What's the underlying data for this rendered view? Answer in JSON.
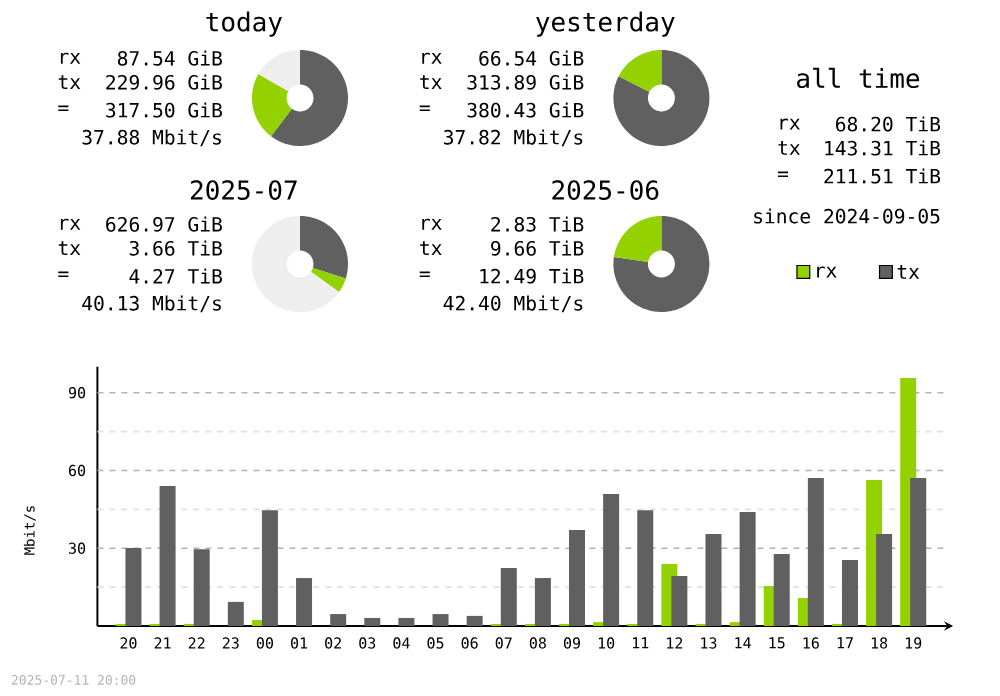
{
  "chart_data": [
    {
      "type": "donut",
      "title": "today",
      "categories": [
        null,
        null,
        null
      ],
      "values": [
        60.3,
        23.0,
        16.7
      ],
      "colors": [
        "#606060",
        "#94d100",
        "#eeeeee"
      ],
      "annotations": [
        "rx",
        "87.54 GiB",
        "tx",
        "229.96 GiB",
        "=",
        "317.50 GiB",
        "37.88 Mbit/s"
      ]
    },
    {
      "type": "donut",
      "title": "yesterday",
      "categories": [
        null,
        null
      ],
      "values": [
        82.5,
        17.5
      ],
      "colors": [
        "#606060",
        "#94d100"
      ],
      "annotations": [
        "rx",
        "66.54 GiB",
        "tx",
        "313.89 GiB",
        "=",
        "380.43 GiB",
        "37.82 Mbit/s"
      ]
    },
    {
      "type": "donut",
      "title": "2025-07",
      "categories": [
        null,
        null,
        null
      ],
      "values": [
        29.9,
        5.0,
        65.1
      ],
      "colors": [
        "#606060",
        "#94d100",
        "#eeeeee"
      ],
      "annotations": [
        "rx",
        "626.97 GiB",
        "tx",
        "3.66 TiB",
        "=",
        "4.27 TiB",
        "40.13 Mbit/s"
      ]
    },
    {
      "type": "donut",
      "title": "2025-06",
      "categories": [
        null,
        null
      ],
      "values": [
        77.3,
        22.7
      ],
      "colors": [
        "#606060",
        "#94d100"
      ],
      "annotations": [
        "rx",
        "2.83 TiB",
        "tx",
        "9.66 TiB",
        "=",
        "12.49 TiB",
        "42.40 Mbit/s"
      ]
    },
    {
      "type": "other",
      "title": "all time",
      "annotations": [
        "rx",
        "68.20 TiB",
        "tx",
        "143.31 TiB",
        "=",
        "211.51 TiB",
        "since 2024-09-05"
      ]
    },
    {
      "type": "bar",
      "categories": [
        "20",
        "21",
        "22",
        "23",
        "00",
        "01",
        "02",
        "03",
        "04",
        "05",
        "06",
        "07",
        "08",
        "09",
        "10",
        "11",
        "12",
        "13",
        "14",
        "15",
        "16",
        "17",
        "18",
        "19"
      ],
      "ylabel": "Mbit/s",
      "ylim": [
        0,
        100
      ],
      "yticks": [
        {
          "value": 15,
          "label": null
        },
        30,
        {
          "value": 45,
          "label": null
        },
        60,
        {
          "value": 75,
          "label": null
        },
        90
      ],
      "grid": "y",
      "legend": "top right",
      "series": [
        {
          "name": "rx",
          "color": "#94d100",
          "values": [
            0.8,
            0.8,
            0.8,
            0,
            2.3,
            0,
            0,
            0,
            0,
            0,
            0,
            0.8,
            0.8,
            0.8,
            1.5,
            0.8,
            23.9,
            0.8,
            1.5,
            15.4,
            10.8,
            0.8,
            56.3,
            95.7
          ]
        },
        {
          "name": "tx",
          "color": "#606060",
          "values": [
            30.1,
            54.0,
            29.6,
            9.3,
            44.7,
            18.5,
            4.6,
            3.1,
            3.1,
            4.6,
            3.9,
            22.4,
            18.5,
            37.0,
            50.9,
            44.7,
            19.3,
            35.5,
            44.0,
            27.8,
            57.1,
            25.5,
            35.5,
            57.1
          ]
        }
      ],
      "annotations": [
        "2025-07-11 20:00"
      ]
    }
  ]
}
